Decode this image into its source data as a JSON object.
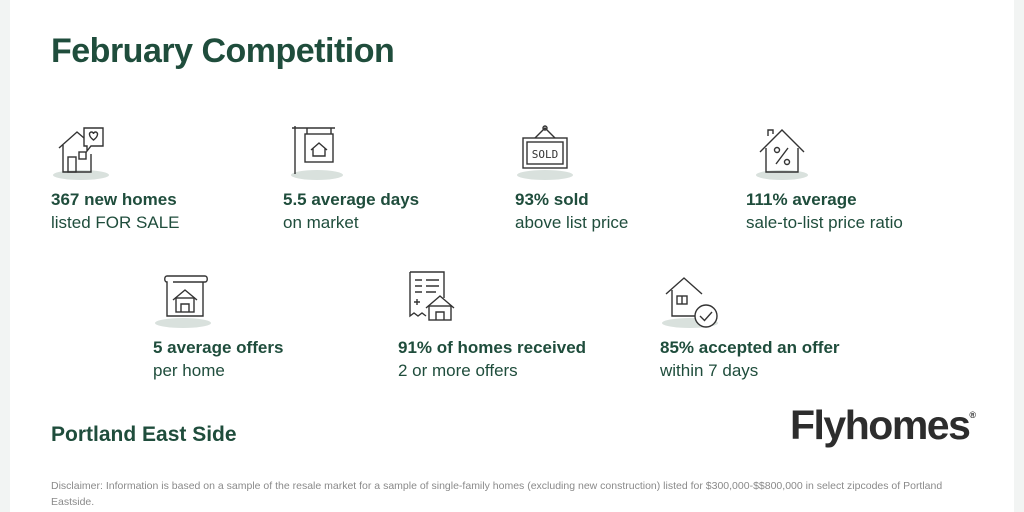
{
  "title": "February Competition",
  "stats": [
    {
      "icon": "house-heart-icon",
      "bold": "367 new homes",
      "sub": "listed FOR SALE"
    },
    {
      "icon": "sign-post-icon",
      "bold": "5.5 average days",
      "sub": "on market"
    },
    {
      "icon": "sold-sign-icon",
      "bold": "93% sold",
      "sub": "above list price"
    },
    {
      "icon": "house-percent-icon",
      "bold": "111% average",
      "sub": "sale-to-list price ratio"
    },
    {
      "icon": "house-document-icon",
      "bold": "5  average offers",
      "sub": "per home"
    },
    {
      "icon": "receipt-house-icon",
      "bold": "91% of homes received",
      "sub": "2 or more offers"
    },
    {
      "icon": "house-check-icon",
      "bold": "85% accepted an offer",
      "sub": "within 7 days"
    }
  ],
  "region": "Portland East Side",
  "logo": {
    "text": "Flyhomes",
    "mark": "®"
  },
  "disclaimer": "Disclaimer: Information is based on a sample of the resale market for a sample of single-family homes  (excluding new construction) listed for $300,000-$$800,000 in select zipcodes of Portland Eastside.",
  "colors": {
    "primary": "#1f4d3c",
    "icon_shadow": "#d9e1dd",
    "logo": "#2d2d2d",
    "disclaimer": "#8a8a8a"
  }
}
